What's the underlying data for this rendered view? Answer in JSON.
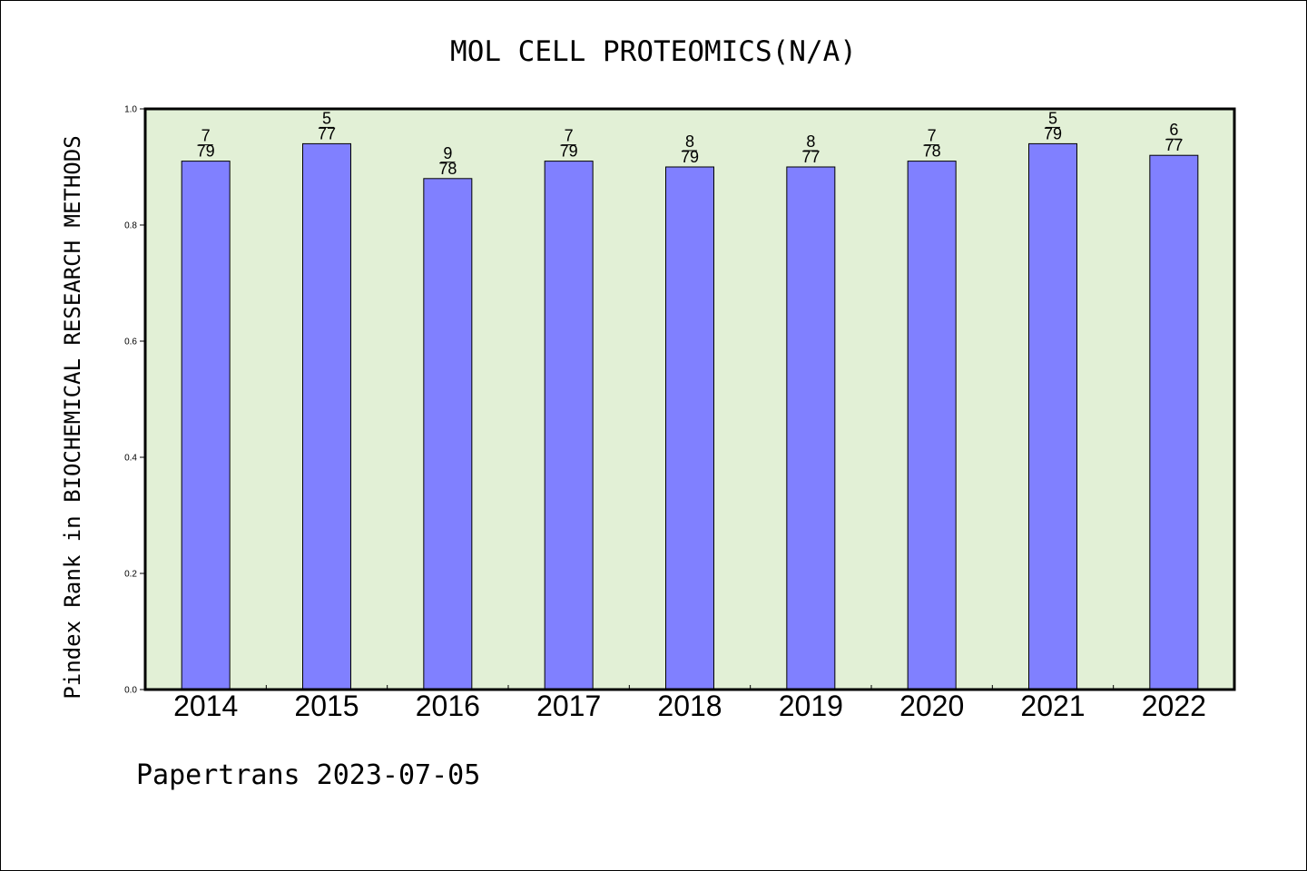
{
  "chart_data": {
    "type": "bar",
    "title": "MOL CELL PROTEOMICS(N/A)",
    "ylabel": "Pindex Rank in BIOCHEMICAL RESEARCH METHODS",
    "xlabel": "",
    "categories": [
      "2014",
      "2015",
      "2016",
      "2017",
      "2018",
      "2019",
      "2020",
      "2021",
      "2022"
    ],
    "values": [
      0.91,
      0.94,
      0.88,
      0.91,
      0.9,
      0.9,
      0.91,
      0.94,
      0.92
    ],
    "rank_labels": [
      {
        "rank": "7",
        "total": "79"
      },
      {
        "rank": "5",
        "total": "77"
      },
      {
        "rank": "9",
        "total": "78"
      },
      {
        "rank": "7",
        "total": "79"
      },
      {
        "rank": "8",
        "total": "79"
      },
      {
        "rank": "8",
        "total": "77"
      },
      {
        "rank": "7",
        "total": "78"
      },
      {
        "rank": "5",
        "total": "79"
      },
      {
        "rank": "6",
        "total": "77"
      }
    ],
    "ylim": [
      0.0,
      1.0
    ],
    "yticks": [
      "0.0",
      "0.2",
      "0.4",
      "0.6",
      "0.8",
      "1.0"
    ],
    "grid": false,
    "colors": {
      "bar": "#8080ff",
      "plot_background": "#e2f0d6",
      "axis": "#000000"
    }
  },
  "footer": "Papertrans 2023-07-05"
}
